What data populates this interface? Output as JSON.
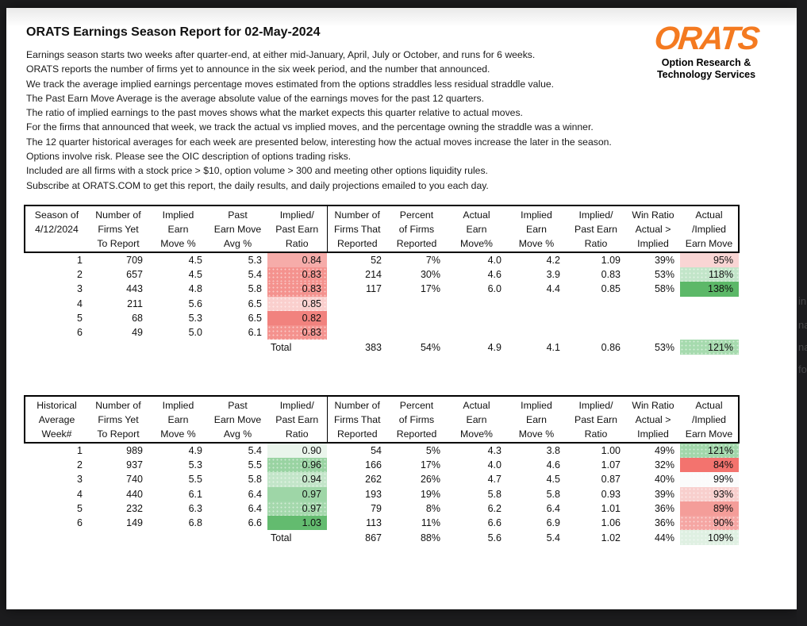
{
  "header": {
    "title": "ORATS Earnings Season Report for 02-May-2024",
    "intro_lines": [
      "Earnings season starts two weeks after quarter-end, at either mid-January, April, July or October, and runs for 6 weeks.",
      "ORATS reports the number of firms yet to announce in the six week period, and the number that announced.",
      "We track the average implied earnings percentage moves estimated from the options straddles less residual straddle value.",
      "The Past Earn Move Average is the average absolute value of the earnings moves for the past 12 quarters.",
      "The ratio of implied earnings to the past moves shows what the market expects this quarter relative to actual moves.",
      "For the firms that announced that week, we track the actual vs implied moves, and the percentage owning the straddle was a winner.",
      "The 12 quarter historical averages for each week are presented below, interesting how the actual moves increase the later in the season.",
      "Options involve risk. Please see the OIC description of options trading risks.",
      "Included are all firms with a stock price > $10, option volume > 300 and meeting other options liquidity rules.",
      "Subscribe at ORATS.COM to get this report, the daily results, and daily projections emailed to you each day."
    ]
  },
  "logo": {
    "name": "ORATS",
    "subtitle": [
      "Option Research &",
      "Technology Services"
    ],
    "color": "#F47A20"
  },
  "edge_fragments": [
    "in",
    "na",
    "na",
    "fo"
  ],
  "tables": [
    {
      "name": "current-season-table",
      "headers": [
        [
          "Season of",
          "4/12/2024",
          ""
        ],
        [
          "Number of",
          "Firms Yet",
          "To Report"
        ],
        [
          "Implied",
          "Earn",
          "Move %"
        ],
        [
          "Past",
          "Earn Move",
          "Avg %"
        ],
        [
          "Implied/",
          "Past Earn",
          "Ratio"
        ],
        [
          "Number of",
          "Firms That",
          "Reported"
        ],
        [
          "Percent",
          "of Firms",
          "Reported"
        ],
        [
          "Actual",
          "Earn",
          "Move%"
        ],
        [
          "Implied",
          "Earn",
          "Move %"
        ],
        [
          "Implied/",
          "Past Earn",
          "Ratio"
        ],
        [
          "Win Ratio",
          "Actual >",
          "Implied"
        ],
        [
          "Actual",
          "/Implied",
          "Earn Move"
        ]
      ],
      "rows": [
        [
          "1",
          "709",
          "4.5",
          "5.3",
          {
            "text": "0.84",
            "bg": "#F6ACA9"
          },
          "52",
          "7%",
          "4.0",
          "4.2",
          "1.09",
          "39%",
          {
            "text": "95%",
            "bg": "#F9D5D4"
          }
        ],
        [
          "2",
          "657",
          "4.5",
          "5.4",
          {
            "text": "0.83",
            "bg": "#F4928E",
            "dots": true
          },
          "214",
          "30%",
          "4.6",
          "3.9",
          "0.83",
          "53%",
          {
            "text": "118%",
            "bg": "#C2E5C9",
            "dots": true
          }
        ],
        [
          "3",
          "443",
          "4.8",
          "5.8",
          {
            "text": "0.83",
            "bg": "#F4928E",
            "dots": true
          },
          "117",
          "17%",
          "6.0",
          "4.4",
          "0.85",
          "58%",
          {
            "text": "138%",
            "bg": "#5CB868"
          }
        ],
        [
          "4",
          "211",
          "5.6",
          "6.5",
          {
            "text": "0.85",
            "bg": "#FACFCD",
            "dots": true
          },
          "",
          "",
          "",
          "",
          "",
          "",
          ""
        ],
        [
          "5",
          "68",
          "5.3",
          "6.5",
          {
            "text": "0.82",
            "bg": "#F1827E"
          },
          "",
          "",
          "",
          "",
          "",
          "",
          ""
        ],
        [
          "6",
          "49",
          "5.0",
          "6.1",
          {
            "text": "0.83",
            "bg": "#F4928E",
            "dots": true
          },
          "",
          "",
          "",
          "",
          "",
          "",
          ""
        ]
      ],
      "total_row": [
        "",
        "",
        "",
        "",
        {
          "text": "Total",
          "align": "left"
        },
        "383",
        "54%",
        "4.9",
        "4.1",
        "0.86",
        "53%",
        {
          "text": "121%",
          "bg": "#A6DAAE",
          "dots": true
        }
      ]
    },
    {
      "name": "historical-average-table",
      "headers": [
        [
          "Historical",
          "Average",
          "Week#"
        ],
        [
          "Number of",
          "Firms Yet",
          "To Report"
        ],
        [
          "Implied",
          "Earn",
          "Move %"
        ],
        [
          "Past",
          "Earn Move",
          "Avg %"
        ],
        [
          "Implied/",
          "Past Earn",
          "Ratio"
        ],
        [
          "Number of",
          "Firms That",
          "Reported"
        ],
        [
          "Percent",
          "of Firms",
          "Reported"
        ],
        [
          "Actual",
          "Earn",
          "Move%"
        ],
        [
          "Implied",
          "Earn",
          "Move %"
        ],
        [
          "Implied/",
          "Past Earn",
          "Ratio"
        ],
        [
          "Win Ratio",
          "Actual >",
          "Implied"
        ],
        [
          "Actual",
          "/Implied",
          "Earn Move"
        ]
      ],
      "rows": [
        [
          "1",
          "989",
          "4.9",
          "5.4",
          {
            "text": "0.90",
            "bg": "#EAF5EC"
          },
          "54",
          "5%",
          "4.3",
          "3.8",
          "1.00",
          "49%",
          {
            "text": "121%",
            "bg": "#A1D7AA",
            "dots": true
          }
        ],
        [
          "2",
          "937",
          "5.3",
          "5.5",
          {
            "text": "0.96",
            "bg": "#99D3A2",
            "dots": true
          },
          "166",
          "17%",
          "4.0",
          "4.6",
          "1.07",
          "32%",
          {
            "text": "84%",
            "bg": "#F3736E"
          }
        ],
        [
          "3",
          "740",
          "5.5",
          "5.8",
          {
            "text": "0.94",
            "bg": "#C3E5C9",
            "dots": true
          },
          "262",
          "26%",
          "4.7",
          "4.5",
          "0.87",
          "40%",
          {
            "text": "99%",
            "bg": "#FBFBFB",
            "dots": true
          }
        ],
        [
          "4",
          "440",
          "6.1",
          "6.4",
          {
            "text": "0.97",
            "bg": "#9ED6A7"
          },
          "193",
          "19%",
          "5.8",
          "5.8",
          "0.93",
          "39%",
          {
            "text": "93%",
            "bg": "#F8CFCD",
            "dots": true
          }
        ],
        [
          "5",
          "232",
          "6.3",
          "6.4",
          {
            "text": "0.97",
            "bg": "#A4D8AC",
            "dots": true
          },
          "79",
          "8%",
          "6.2",
          "6.4",
          "1.01",
          "36%",
          {
            "text": "89%",
            "bg": "#F49D99"
          }
        ],
        [
          "6",
          "149",
          "6.8",
          "6.6",
          {
            "text": "1.03",
            "bg": "#63BB6F"
          },
          "113",
          "11%",
          "6.6",
          "6.9",
          "1.06",
          "36%",
          {
            "text": "90%",
            "bg": "#F5A6A3",
            "dots": true
          }
        ]
      ],
      "total_row": [
        "",
        "",
        "",
        "",
        {
          "text": "Total",
          "align": "left"
        },
        "867",
        "88%",
        "5.6",
        "5.4",
        "1.02",
        "44%",
        {
          "text": "109%",
          "bg": "#DFF0E2",
          "dots": true
        }
      ]
    }
  ]
}
